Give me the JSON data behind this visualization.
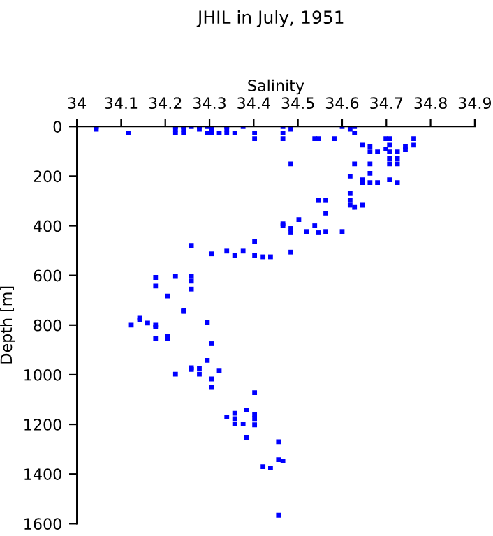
{
  "chart_data": {
    "type": "scatter",
    "title": "JHIL in July, 1951",
    "xlabel": "Salinity",
    "ylabel": "Depth [m]",
    "x": [
      34.044,
      34.044,
      34.116,
      34.223,
      34.223,
      34.223,
      34.241,
      34.241,
      34.241,
      34.259,
      34.277,
      34.277,
      34.295,
      34.295,
      34.305,
      34.305,
      34.322,
      34.339,
      34.339,
      34.339,
      34.357,
      34.376,
      34.402,
      34.402,
      34.466,
      34.466,
      34.466,
      34.484,
      34.484,
      34.538,
      34.546,
      34.582,
      34.6,
      34.618,
      34.628,
      34.628,
      34.646,
      34.663,
      34.663,
      34.68,
      34.699,
      34.699,
      34.707,
      34.707,
      34.707,
      34.707,
      34.707,
      34.707,
      34.725,
      34.725,
      34.725,
      34.725,
      34.743,
      34.743,
      34.762,
      34.762,
      34.628,
      34.618,
      34.646,
      34.646,
      34.663,
      34.663,
      34.663,
      34.68,
      34.618,
      34.618,
      34.618,
      34.628,
      34.646,
      34.546,
      34.563,
      34.563,
      34.563,
      34.546,
      34.538,
      34.52,
      34.6,
      34.502,
      34.484,
      34.484,
      34.484,
      34.466,
      34.466,
      34.402,
      34.402,
      34.438,
      34.421,
      34.376,
      34.357,
      34.339,
      34.305,
      34.259,
      34.259,
      34.259,
      34.259,
      34.223,
      34.178,
      34.178,
      34.205,
      34.241,
      34.142,
      34.123,
      34.142,
      34.16,
      34.178,
      34.178,
      34.178,
      34.205,
      34.205,
      34.241,
      34.295,
      34.305,
      34.295,
      34.259,
      34.259,
      34.277,
      34.277,
      34.223,
      34.305,
      34.322,
      34.305,
      34.402,
      34.339,
      34.357,
      34.357,
      34.357,
      34.376,
      34.384,
      34.402,
      34.402,
      34.402,
      34.384,
      34.456,
      34.456,
      34.466,
      34.421,
      34.438,
      34.456
    ],
    "values": [
      0,
      11,
      26,
      0,
      11,
      26,
      0,
      11,
      26,
      0,
      0,
      11,
      0,
      26,
      11,
      26,
      26,
      0,
      11,
      26,
      26,
      0,
      26,
      49,
      0,
      26,
      49,
      11,
      151,
      49,
      49,
      49,
      0,
      11,
      0,
      26,
      75,
      81,
      102,
      102,
      49,
      91,
      49,
      75,
      102,
      128,
      151,
      215,
      102,
      128,
      151,
      226,
      81,
      94,
      49,
      75,
      151,
      200,
      215,
      226,
      151,
      189,
      226,
      226,
      270,
      298,
      317,
      326,
      317,
      298,
      298,
      349,
      423,
      428,
      400,
      423,
      423,
      375,
      411,
      428,
      506,
      392,
      400,
      462,
      519,
      525,
      525,
      502,
      519,
      502,
      513,
      479,
      604,
      623,
      655,
      604,
      608,
      643,
      683,
      745,
      779,
      800,
      772,
      792,
      800,
      808,
      853,
      845,
      853,
      740,
      789,
      875,
      942,
      972,
      979,
      974,
      998,
      998,
      1017,
      985,
      1051,
      1072,
      1170,
      1155,
      1177,
      1198,
      1198,
      1142,
      1160,
      1177,
      1202,
      1253,
      1270,
      1342,
      1347,
      1370,
      1375,
      1566
    ],
    "color": "#0000ff",
    "marker": "square",
    "xlim": [
      34,
      34.9
    ],
    "xticks": [
      {
        "value": 34,
        "label": "34"
      },
      {
        "value": 34.1,
        "label": "34.1"
      },
      {
        "value": 34.2,
        "label": "34.2"
      },
      {
        "value": 34.3,
        "label": "34.3"
      },
      {
        "value": 34.4,
        "label": "34.4"
      },
      {
        "value": 34.5,
        "label": "34.5"
      },
      {
        "value": 34.6,
        "label": "34.6"
      },
      {
        "value": 34.7,
        "label": "34.7"
      },
      {
        "value": 34.8,
        "label": "34.8"
      },
      {
        "value": 34.9,
        "label": "34.9"
      }
    ],
    "ylim": [
      1600,
      0
    ],
    "yticks": [
      0,
      200,
      400,
      600,
      800,
      1000,
      1200,
      1400,
      1600
    ],
    "grid": false
  }
}
